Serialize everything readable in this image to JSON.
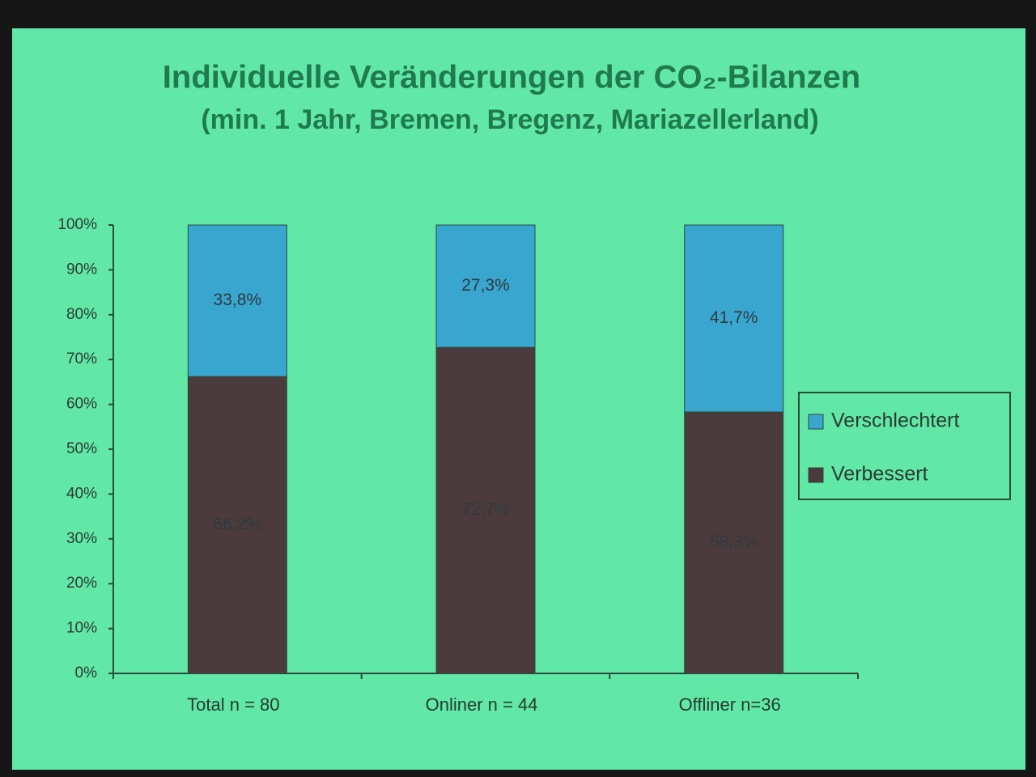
{
  "chart_data": {
    "type": "stacked_bar",
    "title": "Individuelle Veränderungen der CO₂-Bilanzen",
    "subtitle": "(min. 1 Jahr, Bremen, Bregenz, Mariazellerland)",
    "categories": [
      "Total n = 80",
      "Onliner n = 44",
      "Offliner n=36"
    ],
    "series": [
      {
        "name": "Verbessert",
        "color": "#4b3b3c",
        "values": [
          66.2,
          72.7,
          58.3
        ],
        "value_labels": [
          "66,2%",
          "72,7%",
          "58,3%"
        ]
      },
      {
        "name": "Verschlechtert",
        "color": "#38a6cf",
        "values": [
          33.8,
          27.3,
          41.7
        ],
        "value_labels": [
          "33,8%",
          "27,3%",
          "41,7%"
        ]
      }
    ],
    "ylim": [
      0,
      100
    ],
    "yticks": [
      {
        "value": 0,
        "label": "0%"
      },
      {
        "value": 10,
        "label": "10%"
      },
      {
        "value": 20,
        "label": "20%"
      },
      {
        "value": 30,
        "label": "30%"
      },
      {
        "value": 40,
        "label": "40%"
      },
      {
        "value": 50,
        "label": "50%"
      },
      {
        "value": 60,
        "label": "60%"
      },
      {
        "value": 70,
        "label": "70%"
      },
      {
        "value": 80,
        "label": "80%"
      },
      {
        "value": 90,
        "label": "90%"
      },
      {
        "value": 100,
        "label": "100%"
      }
    ],
    "legend": "right"
  }
}
